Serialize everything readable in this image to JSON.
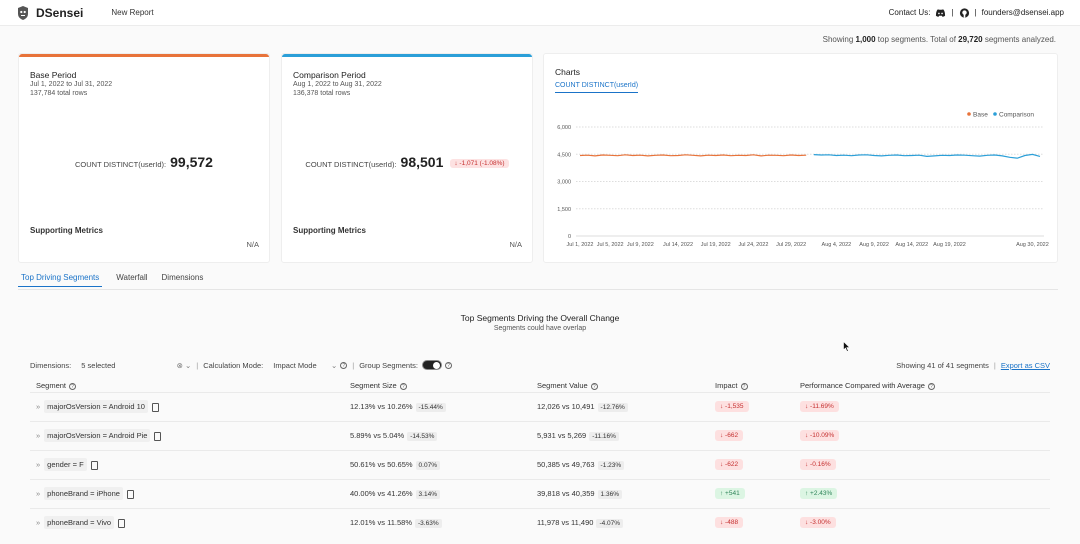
{
  "header": {
    "brand": "DSensei",
    "nav_new_report": "New Report",
    "contact_label": "Contact Us:",
    "separator": "|",
    "email": "founders@dsensei.app"
  },
  "top_note": {
    "prefix": "Showing ",
    "shown": "1,000",
    "middle": " top segments. Total of ",
    "total": "29,720",
    "suffix": " segments analyzed."
  },
  "base": {
    "title": "Base Period",
    "range": "Jul 1, 2022 to Jul 31, 2022",
    "rows": "137,784 total rows",
    "metric_label": "COUNT DISTINCT(userId):",
    "metric_value": "99,572",
    "supporting": "Supporting Metrics",
    "na": "N/A",
    "color": "#e8733a"
  },
  "comparison": {
    "title": "Comparison Period",
    "range": "Aug 1, 2022 to Aug 31, 2022",
    "rows": "136,378 total rows",
    "metric_label": "COUNT DISTINCT(userId):",
    "metric_value": "98,501",
    "delta": "↓ -1,071 (-1.08%)",
    "supporting": "Supporting Metrics",
    "na": "N/A",
    "color": "#2b9fd8"
  },
  "charts": {
    "title": "Charts",
    "tab": "COUNT DISTINCT(userId)"
  },
  "chart_data": {
    "type": "line",
    "legend": [
      "Base",
      "Comparison"
    ],
    "legend_position": "top-right",
    "yticks": [
      "6,000",
      "4,500",
      "3,000",
      "1,500",
      "0"
    ],
    "ylim": [
      0,
      6000
    ],
    "xticks": [
      "Jul 1, 2022",
      "Jul 5, 2022",
      "Jul 9, 2022",
      "Jul 14, 2022",
      "Jul 19, 2022",
      "Jul 24, 2022",
      "Jul 29, 2022",
      "Aug 4, 2022",
      "Aug 9, 2022",
      "Aug 14, 2022",
      "Aug 19, 2022",
      "Aug 30, 2022"
    ],
    "grid": true,
    "series": [
      {
        "name": "Base",
        "color": "#e8733a",
        "x_start": "Jul 1, 2022",
        "values": [
          4430,
          4450,
          4410,
          4460,
          4440,
          4420,
          4470,
          4430,
          4450,
          4410,
          4440,
          4460,
          4420,
          4430,
          4470,
          4440,
          4410,
          4450,
          4430,
          4460,
          4420,
          4440,
          4430,
          4470,
          4410,
          4450,
          4440,
          4420,
          4460,
          4430,
          4450
        ]
      },
      {
        "name": "Comparison",
        "color": "#2b9fd8",
        "x_start": "Aug 1, 2022",
        "values": [
          4480,
          4460,
          4470,
          4430,
          4450,
          4420,
          4460,
          4470,
          4430,
          4410,
          4440,
          4460,
          4420,
          4430,
          4450,
          4380,
          4410,
          4440,
          4430,
          4460,
          4450,
          4420,
          4400,
          4440,
          4460,
          4410,
          4330,
          4280,
          4430,
          4490,
          4380
        ]
      }
    ]
  },
  "tabs": [
    "Top Driving Segments",
    "Waterfall",
    "Dimensions"
  ],
  "section": {
    "title": "Top Segments Driving the Overall Change",
    "subtitle": "Segments could have overlap"
  },
  "controls": {
    "dimensions_label": "Dimensions:",
    "dimensions_value": "5 selected",
    "calc_label": "Calculation Mode:",
    "calc_value": "Impact Mode",
    "group_label": "Group Segments:",
    "showing": "Showing 41 of 41 segments",
    "export": "Export as CSV"
  },
  "table": {
    "headers": [
      "Segment",
      "Segment Size",
      "Segment Value",
      "Impact",
      "Performance Compared with Average"
    ],
    "rows": [
      {
        "segment": "majorOsVersion = Android 10",
        "size": "12.13% vs 10.26%",
        "size_delta": "-15.44%",
        "value": "12,026 vs 10,491",
        "value_delta": "-12.76%",
        "impact": "↓ -1,535",
        "perf": "↓ -11.69%",
        "dir": "neg"
      },
      {
        "segment": "majorOsVersion = Android Pie",
        "size": "5.89% vs 5.04%",
        "size_delta": "-14.53%",
        "value": "5,931 vs 5,269",
        "value_delta": "-11.16%",
        "impact": "↓ -662",
        "perf": "↓ -10.09%",
        "dir": "neg"
      },
      {
        "segment": "gender = F",
        "size": "50.61% vs 50.65%",
        "size_delta": "0.07%",
        "value": "50,385 vs 49,763",
        "value_delta": "-1.23%",
        "impact": "↓ -622",
        "perf": "↓ -0.16%",
        "dir": "neg"
      },
      {
        "segment": "phoneBrand = iPhone",
        "size": "40.00% vs 41.26%",
        "size_delta": "3.14%",
        "value": "39,818 vs 40,359",
        "value_delta": "1.36%",
        "impact": "↑ +541",
        "perf": "↑ +2.43%",
        "dir": "pos"
      },
      {
        "segment": "phoneBrand = Vivo",
        "size": "12.01% vs 11.58%",
        "size_delta": "-3.63%",
        "value": "11,978 vs 11,490",
        "value_delta": "-4.07%",
        "impact": "↓ -488",
        "perf": "↓ -3.00%",
        "dir": "neg"
      }
    ]
  }
}
